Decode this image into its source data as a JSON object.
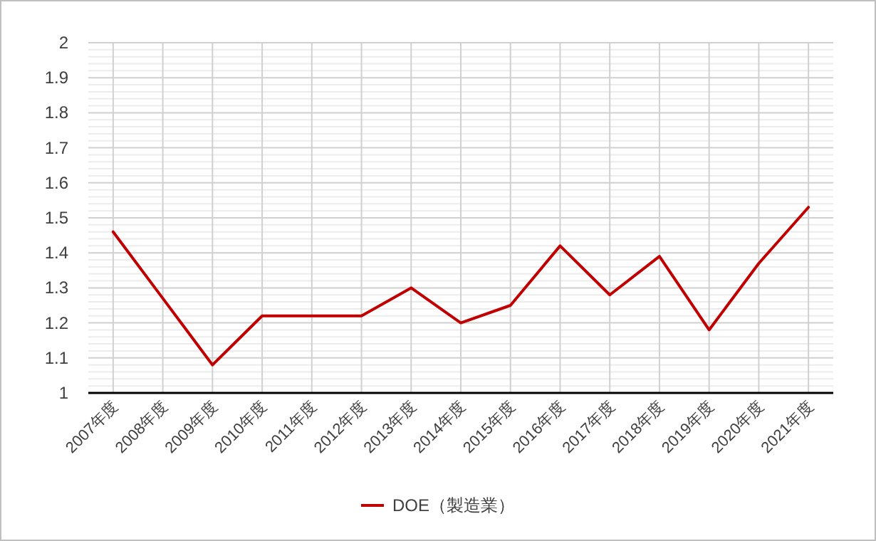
{
  "chart_data": {
    "type": "line",
    "categories": [
      "2007年度",
      "2008年度",
      "2009年度",
      "2010年度",
      "2011年度",
      "2012年度",
      "2013年度",
      "2014年度",
      "2015年度",
      "2016年度",
      "2017年度",
      "2018年度",
      "2019年度",
      "2020年度",
      "2021年度"
    ],
    "series": [
      {
        "name": "DOE（製造業）",
        "color": "#c00000",
        "values": [
          1.46,
          1.27,
          1.08,
          1.22,
          1.22,
          1.22,
          1.3,
          1.2,
          1.25,
          1.42,
          1.28,
          1.39,
          1.18,
          1.37,
          1.53
        ]
      }
    ],
    "ylim": [
      1,
      2
    ],
    "yticks": [
      1,
      1.1,
      1.2,
      1.3,
      1.4,
      1.5,
      1.6,
      1.7,
      1.8,
      1.9,
      2
    ],
    "grid": true,
    "legend": "bottom"
  }
}
